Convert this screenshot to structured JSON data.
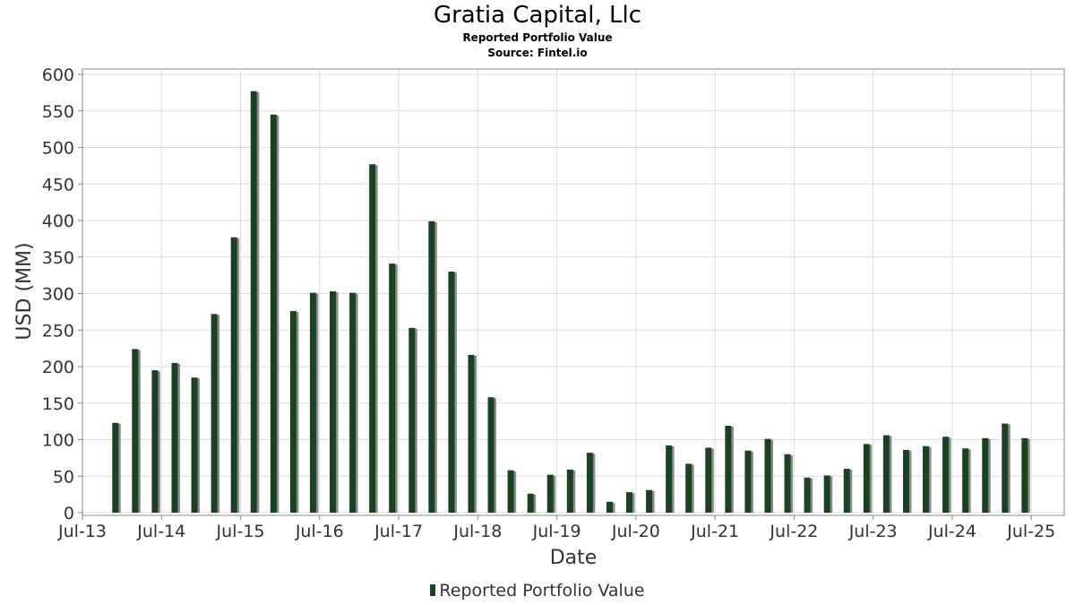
{
  "chart_data": {
    "type": "bar",
    "title": "Gratia Capital, Llc",
    "subtitles": [
      "Reported Portfolio Value",
      "Source: Fintel.io"
    ],
    "xlabel": "Date",
    "ylabel": "USD (MM)",
    "ylim": [
      0,
      600
    ],
    "yticks": [
      0,
      50,
      100,
      150,
      200,
      250,
      300,
      350,
      400,
      450,
      500,
      550,
      600
    ],
    "xticks": [
      "Jul-13",
      "Jul-14",
      "Jul-15",
      "Jul-16",
      "Jul-17",
      "Jul-18",
      "Jul-19",
      "Jul-20",
      "Jul-21",
      "Jul-22",
      "Jul-23",
      "Jul-24",
      "Jul-25"
    ],
    "xlim": [
      "2013-07",
      "2025-12"
    ],
    "grid": true,
    "legend_position": "bottom-center",
    "colors": {
      "bar": "#1a4222",
      "shadow": "#8a8a8a",
      "grid": "#dcdcdc",
      "frame": "#888888"
    },
    "series": [
      {
        "name": "Reported Portfolio Value",
        "dates": [
          "2013-12",
          "2014-03",
          "2014-06",
          "2014-09",
          "2014-12",
          "2015-03",
          "2015-06",
          "2015-09",
          "2015-12",
          "2016-03",
          "2016-06",
          "2016-09",
          "2016-12",
          "2017-03",
          "2017-06",
          "2017-09",
          "2017-12",
          "2018-03",
          "2018-06",
          "2018-09",
          "2018-12",
          "2019-03",
          "2019-06",
          "2019-09",
          "2019-12",
          "2020-03",
          "2020-06",
          "2020-09",
          "2020-12",
          "2021-03",
          "2021-06",
          "2021-09",
          "2021-12",
          "2022-03",
          "2022-06",
          "2022-09",
          "2022-12",
          "2023-03",
          "2023-06",
          "2023-09",
          "2023-12",
          "2024-03",
          "2024-06",
          "2024-09",
          "2024-12",
          "2025-03",
          "2025-06"
        ],
        "values": [
          123,
          224,
          195,
          205,
          185,
          272,
          377,
          577,
          545,
          276,
          301,
          303,
          301,
          477,
          341,
          253,
          399,
          330,
          216,
          158,
          58,
          26,
          52,
          59,
          82,
          15,
          28,
          31,
          92,
          67,
          89,
          119,
          85,
          101,
          80,
          48,
          51,
          60,
          94,
          106,
          86,
          91,
          104,
          88,
          102,
          122,
          102
        ]
      }
    ]
  }
}
